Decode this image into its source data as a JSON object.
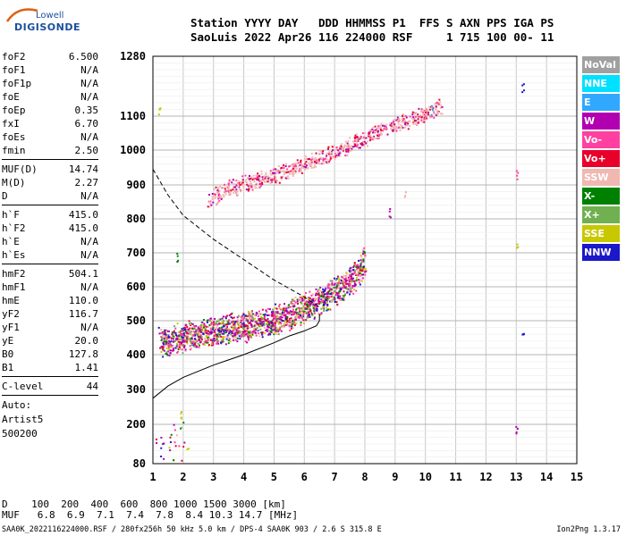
{
  "logo": {
    "line1": "Lowell",
    "line2": "DIGISONDE"
  },
  "header": {
    "line1": "Station YYYY DAY   DDD HHMMSS P1  FFS S AXN PPS IGA PS",
    "line2": "SaoLuis 2022 Apr26 116 224000 RSF     1 715 100 00- 11"
  },
  "params": [
    {
      "label": "foF2",
      "value": "6.500"
    },
    {
      "label": "foF1",
      "value": "N/A"
    },
    {
      "label": "foF1p",
      "value": "N/A"
    },
    {
      "label": "foE",
      "value": "N/A"
    },
    {
      "label": "foEp",
      "value": "0.35"
    },
    {
      "label": "fxI",
      "value": "6.70"
    },
    {
      "label": "foEs",
      "value": "N/A"
    },
    {
      "label": "fmin",
      "value": "2.50"
    },
    {
      "sep": true
    },
    {
      "label": "MUF(D)",
      "value": "14.74"
    },
    {
      "label": "M(D)",
      "value": "2.27"
    },
    {
      "label": "D",
      "value": "N/A"
    },
    {
      "sep": true
    },
    {
      "label": "h`F",
      "value": "415.0"
    },
    {
      "label": "h`F2",
      "value": "415.0"
    },
    {
      "label": "h`E",
      "value": "N/A"
    },
    {
      "label": "h`Es",
      "value": "N/A"
    },
    {
      "sep": true
    },
    {
      "label": "hmF2",
      "value": "504.1"
    },
    {
      "label": "hmF1",
      "value": "N/A"
    },
    {
      "label": "hmE",
      "value": "110.0"
    },
    {
      "label": "yF2",
      "value": "116.7"
    },
    {
      "label": "yF1",
      "value": "N/A"
    },
    {
      "label": "yE",
      "value": "20.0"
    },
    {
      "label": "B0",
      "value": "127.8"
    },
    {
      "label": "B1",
      "value": "1.41"
    },
    {
      "sep": true
    },
    {
      "label": "C-level",
      "value": "44"
    },
    {
      "sep": true
    }
  ],
  "notes": [
    "Auto:",
    "Artist5",
    "500200"
  ],
  "legend": [
    {
      "label": "NoVal",
      "color": "#a0a0a0"
    },
    {
      "label": "NNE",
      "color": "#00e0ff"
    },
    {
      "label": "E",
      "color": "#30a8ff"
    },
    {
      "label": "W",
      "color": "#b000b0"
    },
    {
      "label": "Vo-",
      "color": "#ff40a0"
    },
    {
      "label": "Vo+",
      "color": "#e8002a"
    },
    {
      "label": "SSW",
      "color": "#f0b8b0"
    },
    {
      "label": "X-",
      "color": "#008000"
    },
    {
      "label": "X+",
      "color": "#70b050"
    },
    {
      "label": "SSE",
      "color": "#c8c800"
    },
    {
      "label": "NNW",
      "color": "#1a18c8"
    }
  ],
  "bottom": {
    "line1": "D    100  200  400  600  800 1000 1500 3000 [km]",
    "line2": "MUF   6.8  6.9  7.1  7.4  7.8  8.4 10.3 14.7 [MHz]"
  },
  "footer": {
    "left": "SAA0K_2022116224000.RSF / 280fx256h 50 kHz 5.0 km / DPS-4 SAA0K 903 / 2.6 S 315.8 E",
    "right": "Ion2Png 1.3.17"
  },
  "chart_data": {
    "type": "scatter",
    "x_ticks": [
      1,
      2,
      3,
      4,
      5,
      6,
      7,
      8,
      9,
      10,
      11,
      12,
      13,
      14,
      15
    ],
    "y_ticks": [
      80,
      200,
      300,
      400,
      500,
      600,
      700,
      800,
      900,
      1000,
      1100,
      1280
    ],
    "xlim": [
      1,
      15
    ],
    "ylim": [
      80,
      1280
    ],
    "grid": true,
    "traces": [
      {
        "name": "o-trace lower layer",
        "points": [
          [
            1.2,
            440
          ],
          [
            1.6,
            445
          ],
          [
            2.0,
            450
          ],
          [
            2.5,
            460
          ],
          [
            3.0,
            470
          ],
          [
            3.5,
            478
          ],
          [
            4.0,
            485
          ],
          [
            4.5,
            493
          ],
          [
            5.0,
            505
          ],
          [
            5.5,
            520
          ],
          [
            6.0,
            540
          ],
          [
            6.5,
            560
          ],
          [
            7.0,
            585
          ],
          [
            7.5,
            615
          ],
          [
            7.8,
            650
          ],
          [
            8.0,
            680
          ]
        ]
      },
      {
        "name": "second hop trace",
        "points": [
          [
            2.8,
            850
          ],
          [
            3.2,
            880
          ],
          [
            4.0,
            905
          ],
          [
            5.0,
            930
          ],
          [
            6.0,
            960
          ],
          [
            7.0,
            995
          ],
          [
            8.0,
            1040
          ],
          [
            9.0,
            1075
          ],
          [
            10.0,
            1110
          ],
          [
            10.5,
            1130
          ]
        ]
      }
    ],
    "profile_solid": [
      [
        1.0,
        275
      ],
      [
        1.5,
        310
      ],
      [
        2.0,
        335
      ],
      [
        3.0,
        370
      ],
      [
        4.0,
        400
      ],
      [
        5.0,
        435
      ],
      [
        5.5,
        455
      ],
      [
        6.0,
        470
      ],
      [
        6.4,
        485
      ],
      [
        6.5,
        500
      ],
      [
        6.5,
        520
      ]
    ],
    "profile_dashed": [
      [
        1.0,
        945
      ],
      [
        1.5,
        870
      ],
      [
        2.0,
        810
      ],
      [
        3.0,
        740
      ],
      [
        4.0,
        680
      ],
      [
        5.0,
        620
      ],
      [
        6.0,
        570
      ],
      [
        6.5,
        540
      ]
    ],
    "isolated": [
      {
        "x": 13.2,
        "y": 1190,
        "color": "#1a18c8"
      },
      {
        "x": 13.2,
        "y": 450,
        "color": "#1a18c8"
      },
      {
        "x": 13.0,
        "y": 730,
        "color": "#c8c800"
      },
      {
        "x": 13.0,
        "y": 930,
        "color": "#ff40a0"
      },
      {
        "x": 13.0,
        "y": 185,
        "color": "#b000b0"
      },
      {
        "x": 10.2,
        "y": 1120,
        "color": "#30a8ff"
      },
      {
        "x": 9.3,
        "y": 880,
        "color": "#f0b8b0"
      },
      {
        "x": 8.8,
        "y": 820,
        "color": "#b000b0"
      },
      {
        "x": 1.8,
        "y": 690,
        "color": "#008000"
      },
      {
        "x": 1.9,
        "y": 230,
        "color": "#c8c800"
      },
      {
        "x": 1.2,
        "y": 1110,
        "color": "#c8c800"
      }
    ]
  }
}
